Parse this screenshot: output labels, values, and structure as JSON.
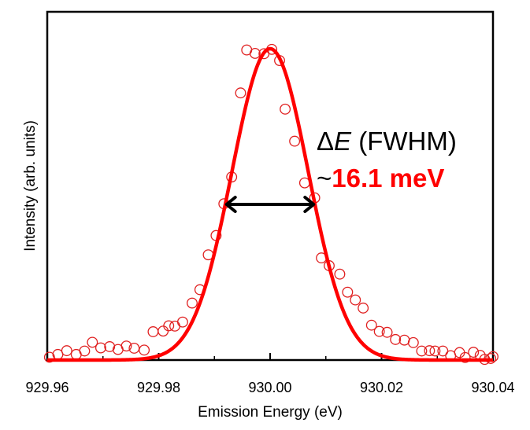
{
  "chart_data": {
    "type": "scatter",
    "xlabel": "Emission Energy (eV)",
    "ylabel": "Intensity (arb. units)",
    "xlim": [
      929.96,
      930.04
    ],
    "ylim": [
      0,
      1.0
    ],
    "x_ticks": [
      "929.96",
      "929.98",
      "930.00",
      "930.02",
      "930.04"
    ],
    "x_tick_values": [
      929.96,
      929.98,
      930.0,
      930.02,
      930.04
    ],
    "y_ticks": "none",
    "grid": false,
    "series": [
      {
        "kind": "points",
        "marker": "open-circle",
        "color": "#e02020",
        "points": [
          [
            929.9604,
            0.009
          ],
          [
            929.9619,
            0.018
          ],
          [
            929.9635,
            0.03
          ],
          [
            929.9652,
            0.018
          ],
          [
            929.9667,
            0.029
          ],
          [
            929.9681,
            0.057
          ],
          [
            929.9696,
            0.039
          ],
          [
            929.9712,
            0.043
          ],
          [
            929.9727,
            0.034
          ],
          [
            929.9742,
            0.045
          ],
          [
            929.9756,
            0.038
          ],
          [
            929.9774,
            0.032
          ],
          [
            929.979,
            0.091
          ],
          [
            929.9808,
            0.093
          ],
          [
            929.9818,
            0.11
          ],
          [
            929.9829,
            0.109
          ],
          [
            929.9843,
            0.122
          ],
          [
            929.986,
            0.183
          ],
          [
            929.9874,
            0.226
          ],
          [
            929.9889,
            0.338
          ],
          [
            929.9903,
            0.4
          ],
          [
            929.9917,
            0.502
          ],
          [
            929.9931,
            0.588
          ],
          [
            929.9947,
            0.858
          ],
          [
            929.9958,
            0.996
          ],
          [
            929.9973,
            0.985
          ],
          [
            929.9989,
            0.984
          ],
          [
            930.0003,
            0.998
          ],
          [
            930.0017,
            0.962
          ],
          [
            930.0027,
            0.806
          ],
          [
            930.0044,
            0.703
          ],
          [
            930.0062,
            0.569
          ],
          [
            930.008,
            0.521
          ],
          [
            930.0092,
            0.328
          ],
          [
            930.0106,
            0.303
          ],
          [
            930.0125,
            0.276
          ],
          [
            930.0139,
            0.218
          ],
          [
            930.0153,
            0.193
          ],
          [
            930.0167,
            0.167
          ],
          [
            930.0182,
            0.112
          ],
          [
            930.0196,
            0.092
          ],
          [
            930.021,
            0.089
          ],
          [
            930.0225,
            0.066
          ],
          [
            930.0241,
            0.064
          ],
          [
            930.0257,
            0.056
          ],
          [
            930.0272,
            0.029
          ],
          [
            930.0286,
            0.03
          ],
          [
            930.0296,
            0.029
          ],
          [
            930.031,
            0.029
          ],
          [
            930.0324,
            0.014
          ],
          [
            930.034,
            0.024
          ],
          [
            930.035,
            0.008
          ],
          [
            930.0365,
            0.025
          ],
          [
            930.0377,
            0.015
          ],
          [
            930.0385,
            0.002
          ],
          [
            930.0396,
            0.005
          ],
          [
            930.04,
            0.011
          ]
        ]
      },
      {
        "kind": "fit",
        "function": "gaussian",
        "color": "#ff0000",
        "center": 930.0,
        "fwhm": 0.0161,
        "amplitude": 1.0,
        "baseline": 0.0
      }
    ],
    "annotation": {
      "line1_prefix": "Δ",
      "line1_italic": "E",
      "line1_suffix": " (FWHM)",
      "line2_prefix": "~",
      "line2_value": "16.1 meV",
      "highlight_color": "#ff0000",
      "arrow_from": 929.9919,
      "arrow_to": 930.0081,
      "arrow_level": 0.5
    }
  }
}
